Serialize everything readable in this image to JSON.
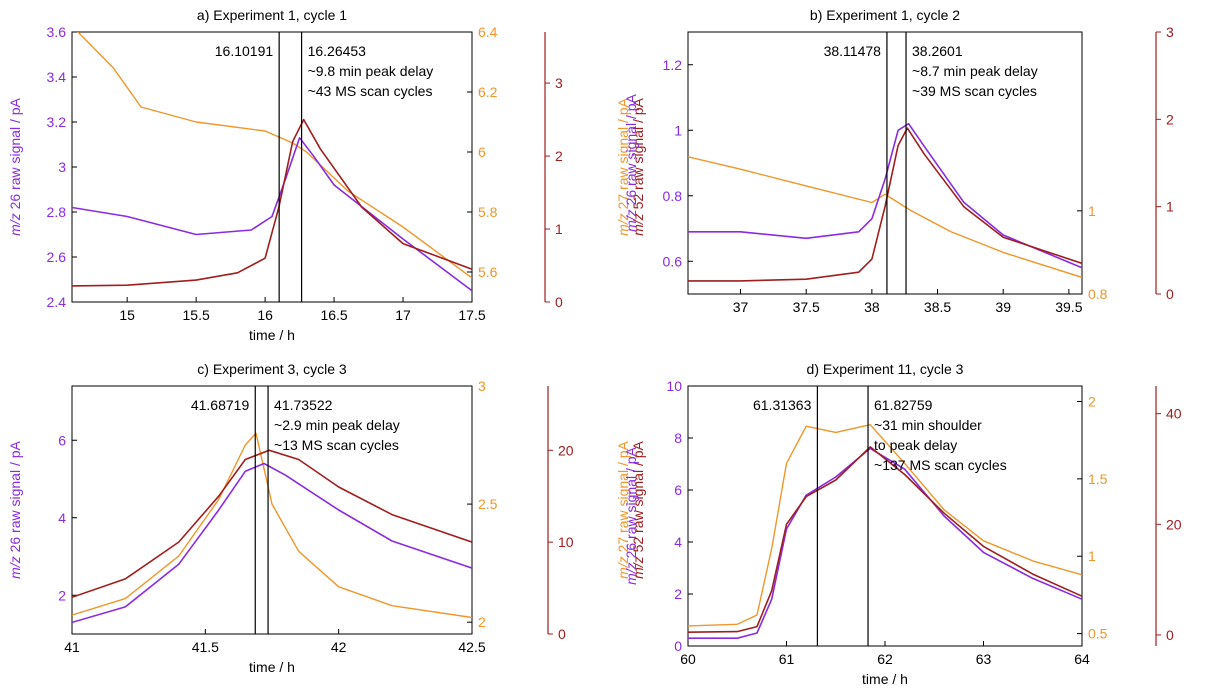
{
  "colors": {
    "m26": "#8a2be2",
    "m27": "#f0962a",
    "m52": "#a01e1e",
    "axis": "#000000"
  },
  "chart_data": [
    {
      "type": "line",
      "title": "a) Experiment 1, cycle 1",
      "xlabel": "time / h",
      "xlim": [
        14.6,
        17.5
      ],
      "xticks": [
        15,
        15.5,
        16,
        16.5,
        17,
        17.5
      ],
      "axes": {
        "m26": {
          "label_italic": "m/z",
          "label_rest": " 26 raw signal / pA",
          "lim": [
            2.4,
            3.6
          ],
          "ticks": [
            2.4,
            2.6,
            2.8,
            3,
            3.2,
            3.4,
            3.6
          ]
        },
        "m27": {
          "label_italic": "m/z",
          "label_rest": " 27 raw signal / pA",
          "lim": [
            5.5,
            6.4
          ],
          "ticks": [
            5.6,
            5.8,
            6,
            6.2,
            6.4
          ]
        },
        "m52": {
          "label_italic": "m/z",
          "label_rest": " 52 raw signal / pA",
          "lim": [
            0,
            3.7
          ],
          "ticks": [
            0,
            1,
            2,
            3
          ]
        }
      },
      "vlines": [
        16.10191,
        16.26453
      ],
      "vline_labels": [
        "16.10191",
        "16.26453"
      ],
      "annotation": [
        "~9.8 min peak delay",
        "~43 MS scan cycles"
      ],
      "series": [
        {
          "key": "m26",
          "x": [
            14.6,
            15.0,
            15.5,
            15.9,
            16.05,
            16.15,
            16.25,
            16.35,
            16.5,
            17.0,
            17.5
          ],
          "y": [
            2.82,
            2.78,
            2.7,
            2.72,
            2.78,
            2.95,
            3.13,
            3.05,
            2.92,
            2.68,
            2.45
          ]
        },
        {
          "key": "m27",
          "x": [
            14.6,
            14.9,
            15.1,
            15.5,
            16.0,
            16.2,
            16.3,
            16.6,
            17.0,
            17.5
          ],
          "y": [
            6.42,
            6.28,
            6.15,
            6.1,
            6.07,
            6.03,
            6.0,
            5.87,
            5.75,
            5.58
          ]
        },
        {
          "key": "m52",
          "x": [
            14.6,
            15.0,
            15.5,
            15.8,
            16.0,
            16.1,
            16.2,
            16.28,
            16.4,
            16.7,
            17.0,
            17.5
          ],
          "y": [
            0.22,
            0.23,
            0.3,
            0.4,
            0.6,
            1.3,
            2.2,
            2.5,
            2.1,
            1.3,
            0.8,
            0.45
          ]
        }
      ]
    },
    {
      "type": "line",
      "title": "b) Experiment 1, cycle 2",
      "xlabel": "",
      "xlim": [
        36.6,
        39.6
      ],
      "xticks": [
        37,
        37.5,
        38,
        38.5,
        39,
        39.5
      ],
      "axes": {
        "m26": {
          "label_italic": "m/z",
          "label_rest": " 26 raw signal / pA",
          "lim": [
            0.5,
            1.3
          ],
          "ticks": [
            0.6,
            0.8,
            1,
            1.2
          ]
        },
        "m27": {
          "label_italic": "m/z",
          "label_rest": " 27 raw signal / pA",
          "lim": [
            0.8,
            1.43
          ],
          "ticks": [
            0.8,
            1
          ]
        },
        "m52": {
          "label_italic": "m/z",
          "label_rest": " 52 raw signal / pA",
          "lim": [
            0,
            3
          ],
          "ticks": [
            0,
            1,
            2,
            3
          ]
        }
      },
      "vlines": [
        38.11478,
        38.2601
      ],
      "vline_labels": [
        "38.11478",
        "38.2601"
      ],
      "annotation": [
        "~8.7 min peak delay",
        "~39 MS scan cycles"
      ],
      "series": [
        {
          "key": "m26",
          "x": [
            36.6,
            37.0,
            37.5,
            37.9,
            38.0,
            38.1,
            38.2,
            38.28,
            38.4,
            38.7,
            39.0,
            39.6
          ],
          "y": [
            0.69,
            0.69,
            0.67,
            0.69,
            0.73,
            0.85,
            1.0,
            1.02,
            0.95,
            0.78,
            0.68,
            0.58
          ]
        },
        {
          "key": "m27",
          "x": [
            36.6,
            37.0,
            37.5,
            38.0,
            38.1,
            38.2,
            38.3,
            38.6,
            39.0,
            39.6
          ],
          "y": [
            1.13,
            1.1,
            1.06,
            1.02,
            1.04,
            1.02,
            1.0,
            0.95,
            0.9,
            0.84
          ]
        },
        {
          "key": "m52",
          "x": [
            36.6,
            37.0,
            37.5,
            37.9,
            38.0,
            38.1,
            38.2,
            38.27,
            38.4,
            38.7,
            39.0,
            39.6
          ],
          "y": [
            0.15,
            0.15,
            0.17,
            0.25,
            0.4,
            1.0,
            1.7,
            1.9,
            1.6,
            1.0,
            0.65,
            0.35
          ]
        }
      ]
    },
    {
      "type": "line",
      "title": "c) Experiment 3, cycle 3",
      "xlabel": "time / h",
      "xlim": [
        41.0,
        42.5
      ],
      "xticks": [
        41,
        41.5,
        42,
        42.5
      ],
      "axes": {
        "m26": {
          "label_italic": "m/z",
          "label_rest": " 26 raw signal / pA",
          "lim": [
            1.0,
            7.4
          ],
          "ticks": [
            2,
            4,
            6
          ]
        },
        "m27": {
          "label_italic": "m/z",
          "label_rest": " 27 raw signal / pA",
          "lim": [
            1.95,
            3.0
          ],
          "ticks": [
            2,
            2.5,
            3
          ]
        },
        "m52": {
          "label_italic": "m/z",
          "label_rest": " 52 raw signal / pA",
          "lim": [
            0,
            27
          ],
          "ticks": [
            0,
            10,
            20
          ]
        }
      },
      "vlines": [
        41.68719,
        41.73522
      ],
      "vline_labels": [
        "41.68719",
        "41.73522"
      ],
      "annotation": [
        "~2.9 min peak delay",
        "~13 MS scan cycles"
      ],
      "series": [
        {
          "key": "m26",
          "x": [
            41.0,
            41.2,
            41.4,
            41.55,
            41.65,
            41.72,
            41.8,
            42.0,
            42.2,
            42.5
          ],
          "y": [
            1.3,
            1.7,
            2.8,
            4.2,
            5.2,
            5.4,
            5.1,
            4.2,
            3.4,
            2.7
          ]
        },
        {
          "key": "m27",
          "x": [
            41.0,
            41.2,
            41.4,
            41.55,
            41.65,
            41.69,
            41.75,
            41.85,
            42.0,
            42.2,
            42.5
          ],
          "y": [
            2.03,
            2.1,
            2.28,
            2.52,
            2.75,
            2.8,
            2.5,
            2.3,
            2.15,
            2.07,
            2.02
          ]
        },
        {
          "key": "m52",
          "x": [
            41.0,
            41.2,
            41.4,
            41.55,
            41.65,
            41.74,
            41.85,
            42.0,
            42.2,
            42.5
          ],
          "y": [
            4.0,
            6.0,
            10.0,
            15.0,
            19.0,
            20.0,
            19.0,
            16.0,
            13.0,
            10.0
          ]
        }
      ]
    },
    {
      "type": "line",
      "title": "d) Experiment 11, cycle 3",
      "xlabel": "time / h",
      "xlim": [
        60,
        64
      ],
      "xticks": [
        60,
        61,
        62,
        63,
        64
      ],
      "axes": {
        "m26": {
          "label_italic": "m/z",
          "label_rest": " 26 raw signal / pA",
          "lim": [
            0,
            10
          ],
          "ticks": [
            0,
            2,
            4,
            6,
            8,
            10
          ]
        },
        "m27": {
          "label_italic": "m/z",
          "label_rest": " 27 raw signal / pA",
          "lim": [
            0.42,
            2.1
          ],
          "ticks": [
            0.5,
            1,
            1.5,
            2
          ]
        },
        "m52": {
          "label_italic": "m/z",
          "label_rest": " 52 raw signal / pA",
          "lim": [
            -2,
            45
          ],
          "ticks": [
            0,
            20,
            40
          ]
        }
      },
      "vlines": [
        61.31363,
        61.82759
      ],
      "vline_labels": [
        "61.31363",
        "61.82759"
      ],
      "annotation": [
        "~31 min shoulder",
        "to peak delay",
        "~137 MS scan cycles"
      ],
      "series": [
        {
          "key": "m26",
          "x": [
            60,
            60.5,
            60.7,
            60.85,
            61.0,
            61.2,
            61.5,
            61.85,
            62.2,
            62.6,
            63.0,
            63.5,
            64
          ],
          "y": [
            0.3,
            0.3,
            0.5,
            1.8,
            4.5,
            5.8,
            6.5,
            7.6,
            6.8,
            5.0,
            3.6,
            2.6,
            1.8
          ]
        },
        {
          "key": "m27",
          "x": [
            60,
            60.5,
            60.7,
            60.85,
            61.0,
            61.2,
            61.5,
            61.85,
            62.2,
            62.6,
            63.0,
            63.5,
            64
          ],
          "y": [
            0.55,
            0.56,
            0.62,
            1.05,
            1.6,
            1.84,
            1.8,
            1.85,
            1.6,
            1.3,
            1.1,
            0.97,
            0.88
          ]
        },
        {
          "key": "m52",
          "x": [
            60,
            60.5,
            60.7,
            60.85,
            61.0,
            61.2,
            61.5,
            61.85,
            62.2,
            62.6,
            63.0,
            63.5,
            64
          ],
          "y": [
            0.5,
            0.6,
            1.5,
            8.0,
            20.0,
            25.0,
            28.0,
            34.0,
            29.0,
            22.0,
            16.0,
            11.0,
            7.0
          ]
        }
      ]
    }
  ]
}
